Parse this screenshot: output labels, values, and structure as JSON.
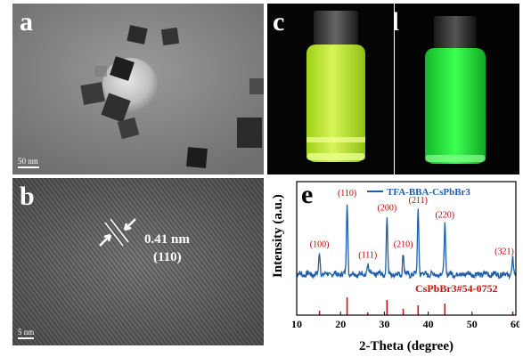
{
  "figure": {
    "panel_a": {
      "label": "a",
      "scale_text": "50 nm"
    },
    "panel_b": {
      "label": "b",
      "scale_text": "5 nm",
      "spacing": "0.41 nm",
      "plane": "(110)"
    },
    "panel_c": {
      "label": "c"
    },
    "panel_d": {
      "label": "d"
    },
    "panel_e": {
      "label": "e"
    }
  },
  "colors": {
    "xrd_line": "#1f5fa8",
    "reference": "#cc1111",
    "annot": "#c00000",
    "fluor_c": "#c8f040",
    "fluor_d": "#2ee83a"
  },
  "chart_data": {
    "type": "line",
    "xlabel": "2-Theta (degree)",
    "ylabel": "Intensity (a.u.)",
    "xlim": [
      10,
      60
    ],
    "xticks": [
      "10",
      "20",
      "30",
      "40",
      "50",
      "60"
    ],
    "legend": {
      "label": "TFA-BBA-CsPbBr3",
      "placement": "top-right"
    },
    "reference_label": "CsPbBr3#54-0752",
    "peaks": [
      {
        "x": 15.2,
        "height": 0.3,
        "label": "(100)"
      },
      {
        "x": 21.5,
        "height": 1.0,
        "label": "(110)"
      },
      {
        "x": 26.2,
        "height": 0.15,
        "label": "(111)"
      },
      {
        "x": 30.6,
        "height": 0.8,
        "label": "(200)"
      },
      {
        "x": 34.3,
        "height": 0.3,
        "label": "(210)"
      },
      {
        "x": 37.7,
        "height": 0.9,
        "label": "(211)"
      },
      {
        "x": 43.8,
        "height": 0.7,
        "label": "(220)"
      },
      {
        "x": 59.3,
        "height": 0.2,
        "label": "(321)"
      }
    ],
    "reference_sticks": [
      {
        "x": 15.2,
        "h": 0.25
      },
      {
        "x": 21.5,
        "h": 1.0
      },
      {
        "x": 26.2,
        "h": 0.15
      },
      {
        "x": 30.6,
        "h": 0.85
      },
      {
        "x": 34.3,
        "h": 0.35
      },
      {
        "x": 37.7,
        "h": 0.55
      },
      {
        "x": 43.8,
        "h": 0.65
      },
      {
        "x": 59.3,
        "h": 0.2
      }
    ]
  }
}
